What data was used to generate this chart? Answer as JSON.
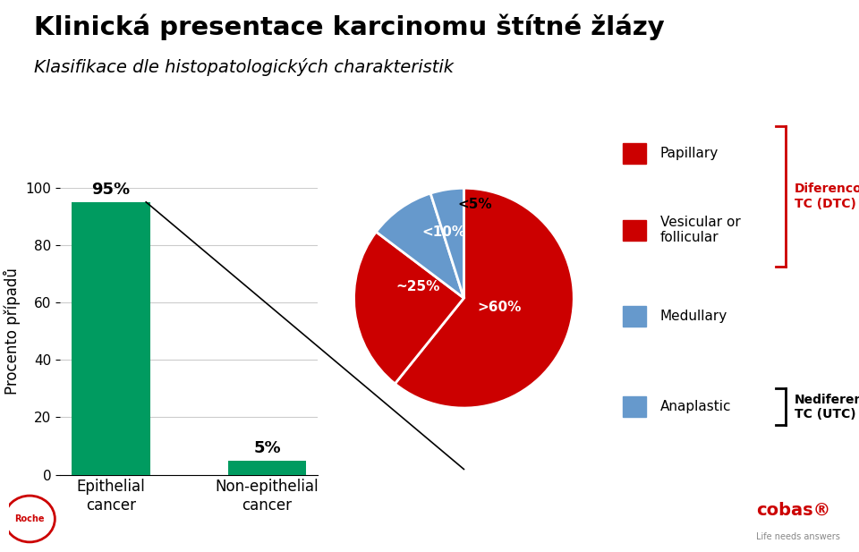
{
  "title": "Klinická presentace karcinomu štítné žlázy",
  "subtitle": "Klasifikace dle histopatologických charakteristik",
  "bar_categories": [
    "Epithelial\ncancer",
    "Non-epithelial\ncancer"
  ],
  "bar_values": [
    95,
    5
  ],
  "bar_color": "#009B60",
  "bar_labels": [
    "95%",
    "5%"
  ],
  "ylabel": "Procento případů",
  "ylim": [
    0,
    100
  ],
  "yticks": [
    0,
    20,
    40,
    60,
    80,
    100
  ],
  "pie_values": [
    62,
    25,
    10,
    5
  ],
  "pie_labels": [
    ">60%",
    "~25%",
    "<10%",
    "<5%"
  ],
  "pie_colors": [
    "#CC0000",
    "#CC0000",
    "#6699CC",
    "#6699CC"
  ],
  "pie_wedge_edge_colors": [
    "white",
    "white",
    "white",
    "white"
  ],
  "legend_labels": [
    "Papillary",
    "Vesicular or\nfollicular",
    "Medullary",
    "Anaplastic"
  ],
  "legend_colors": [
    "#CC0000",
    "#CC0000",
    "#6699CC",
    "#6699CC"
  ],
  "dtc_label": "Diferencovaný\nTC (DTC)",
  "utc_label": "Nediferencovaný\nTC (UTC)",
  "background_color": "#FFFFFF",
  "title_fontsize": 21,
  "subtitle_fontsize": 14,
  "axis_fontsize": 12,
  "tick_fontsize": 11,
  "bar_label_fontsize": 13,
  "pie_label_fontsize": 11,
  "legend_fontsize": 11
}
